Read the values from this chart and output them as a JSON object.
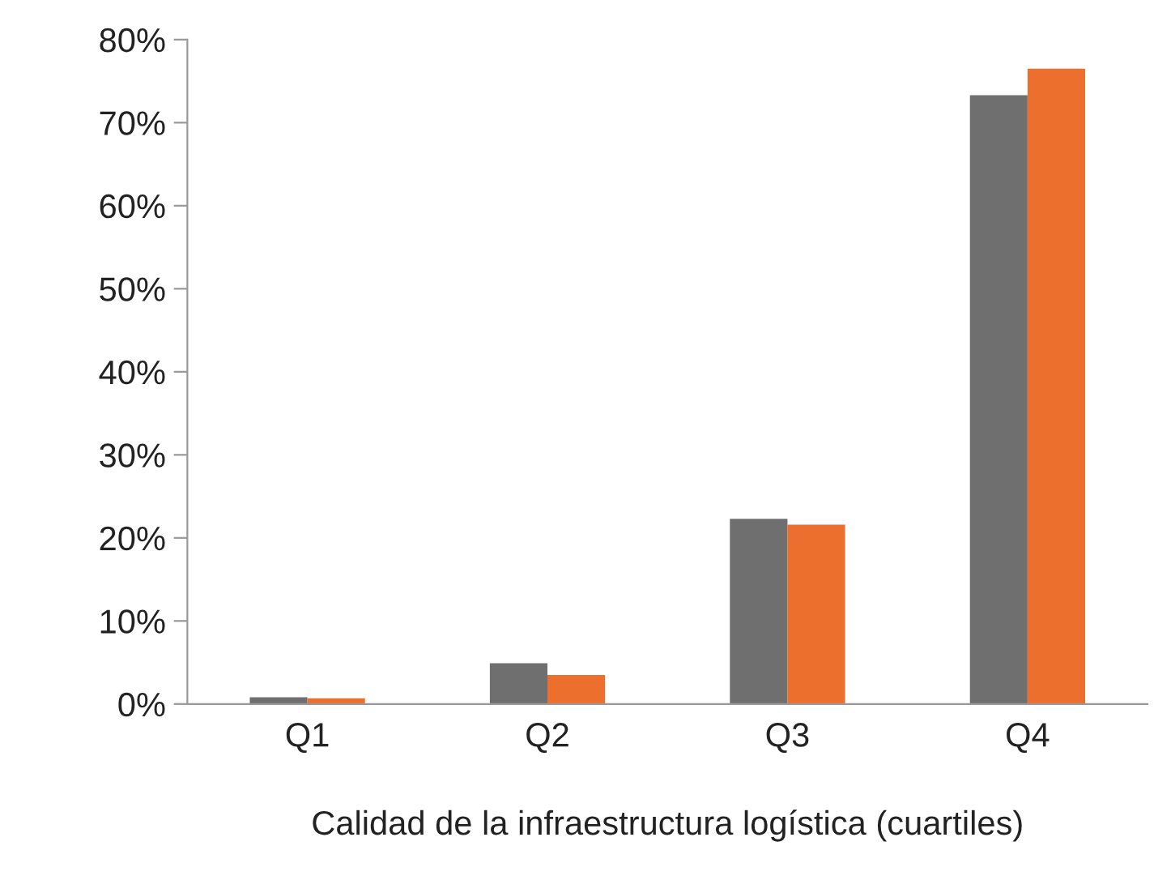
{
  "chart_data": {
    "type": "bar",
    "xlabel": "Calidad de la infraestructura logística (cuartiles)",
    "categories": [
      "Q1",
      "Q2",
      "Q3",
      "Q4"
    ],
    "series": [
      {
        "color": "#6f6f6f",
        "values": [
          0.8,
          4.9,
          22.3,
          73.3
        ]
      },
      {
        "color": "#ec6f2d",
        "values": [
          0.7,
          3.5,
          21.6,
          76.5
        ]
      }
    ],
    "ylim": [
      0,
      80
    ],
    "yticks": [
      {
        "value": 0,
        "label": "0%"
      },
      {
        "value": 10,
        "label": "10%"
      },
      {
        "value": 20,
        "label": "20%"
      },
      {
        "value": 30,
        "label": "30%"
      },
      {
        "value": 40,
        "label": "40%"
      },
      {
        "value": 50,
        "label": "50%"
      },
      {
        "value": 60,
        "label": "60%"
      },
      {
        "value": 70,
        "label": "70%"
      },
      {
        "value": 80,
        "label": "80%"
      }
    ],
    "grid": false
  }
}
